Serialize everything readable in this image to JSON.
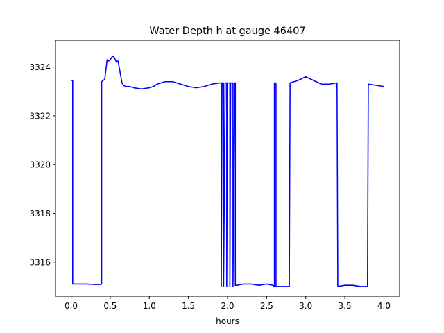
{
  "chart_data": {
    "type": "line",
    "title": "Water Depth h at gauge 46407",
    "xlabel": "hours",
    "ylabel": "",
    "xlim": [
      -0.2,
      4.2
    ],
    "ylim": [
      3314.6,
      3325.1
    ],
    "xticks": [
      0.0,
      0.5,
      1.0,
      1.5,
      2.0,
      2.5,
      3.0,
      3.5,
      4.0
    ],
    "xtick_labels": [
      "0.0",
      "0.5",
      "1.0",
      "1.5",
      "2.0",
      "2.5",
      "3.0",
      "3.5",
      "4.0"
    ],
    "yticks": [
      3316,
      3318,
      3320,
      3322,
      3324
    ],
    "ytick_labels": [
      "3316",
      "3318",
      "3320",
      "3322",
      "3324"
    ],
    "grid": false,
    "legend": "none",
    "series": [
      {
        "color": "#0000ff",
        "x": [
          0.0,
          0.01,
          0.02,
          0.02,
          0.1,
          0.2,
          0.3,
          0.38,
          0.39,
          0.39,
          0.43,
          0.46,
          0.48,
          0.5,
          0.53,
          0.55,
          0.58,
          0.6,
          0.62,
          0.65,
          0.67,
          0.7,
          0.75,
          0.8,
          0.9,
          1.0,
          1.05,
          1.1,
          1.2,
          1.3,
          1.4,
          1.5,
          1.6,
          1.7,
          1.8,
          1.9,
          1.92,
          1.92,
          1.93,
          1.95,
          1.95,
          1.97,
          1.99,
          1.99,
          2.0,
          2.03,
          2.03,
          2.04,
          2.07,
          2.07,
          2.09,
          2.1,
          2.1,
          2.12,
          2.2,
          2.3,
          2.4,
          2.5,
          2.58,
          2.6,
          2.6,
          2.62,
          2.62,
          2.65,
          2.7,
          2.79,
          2.8,
          2.9,
          3.0,
          3.1,
          3.2,
          3.3,
          3.4,
          3.41,
          3.41,
          3.5,
          3.6,
          3.7,
          3.77,
          3.79,
          3.8,
          3.9,
          4.0
        ],
        "y": [
          3323.45,
          3323.45,
          3323.45,
          3315.1,
          3315.1,
          3315.1,
          3315.08,
          3315.08,
          3315.1,
          3323.4,
          3323.5,
          3324.3,
          3324.25,
          3324.3,
          3324.45,
          3324.4,
          3324.2,
          3324.25,
          3323.9,
          3323.35,
          3323.25,
          3323.2,
          3323.2,
          3323.15,
          3323.1,
          3323.15,
          3323.2,
          3323.3,
          3323.4,
          3323.4,
          3323.3,
          3323.2,
          3323.15,
          3323.2,
          3323.3,
          3323.35,
          3323.35,
          3315.0,
          3323.35,
          3323.35,
          3315.0,
          3323.35,
          3323.35,
          3315.0,
          3323.35,
          3323.35,
          3315.0,
          3323.35,
          3323.35,
          3315.0,
          3323.35,
          3323.35,
          3315.05,
          3315.05,
          3315.1,
          3315.1,
          3315.05,
          3315.1,
          3315.05,
          3315.0,
          3323.35,
          3323.35,
          3315.0,
          3315.0,
          3315.0,
          3315.0,
          3323.35,
          3323.45,
          3323.6,
          3323.45,
          3323.3,
          3323.3,
          3323.35,
          3315.0,
          3315.0,
          3315.05,
          3315.05,
          3315.0,
          3315.0,
          3315.0,
          3323.3,
          3323.25,
          3323.2
        ]
      }
    ]
  }
}
